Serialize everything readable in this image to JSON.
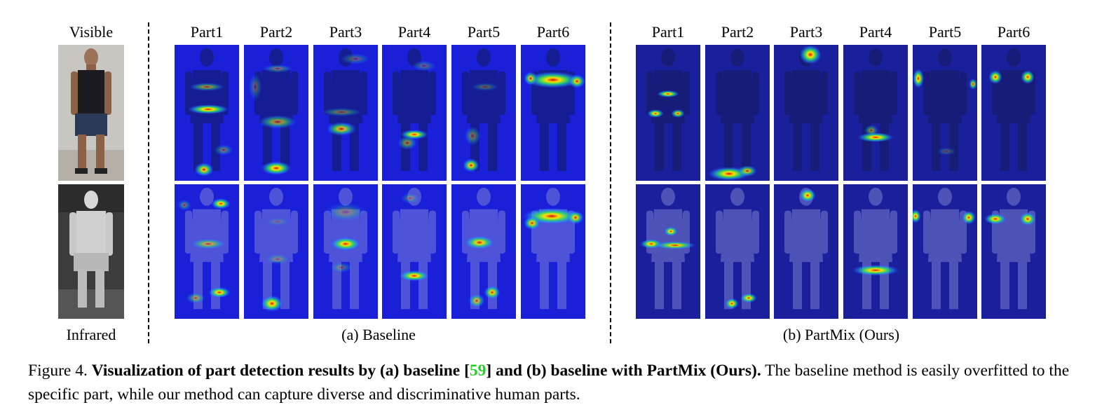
{
  "visible_column": {
    "top_label": "Visible",
    "bottom_label": "Infrared"
  },
  "panels": [
    {
      "id": "baseline",
      "part_labels": [
        "Part1",
        "Part2",
        "Part3",
        "Part4",
        "Part5",
        "Part6"
      ],
      "sublabel": "(a) Baseline"
    },
    {
      "id": "partmix",
      "part_labels": [
        "Part1",
        "Part2",
        "Part3",
        "Part4",
        "Part5",
        "Part6"
      ],
      "sublabel": "(b) PartMix (Ours)"
    }
  ],
  "caption": {
    "figure_label": "Figure 4.",
    "bold_a": "Visualization of part detection results by (a) baseline [",
    "ref": "59",
    "bold_b": "] and (b) baseline with PartMix (Ours).",
    "body": "The baseline method is easily overfitted to the specific part, while our method can capture diverse and discriminative human parts."
  },
  "colors": {
    "heat_base": "#1a1fd8",
    "partmix_base": "#1a1f9c",
    "reference_link": "#1fd21f"
  }
}
